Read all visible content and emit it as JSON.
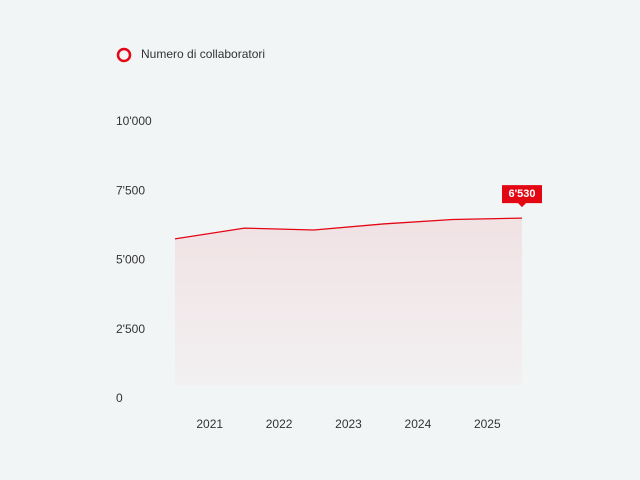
{
  "chart_data": {
    "type": "line",
    "x": [
      2020.5,
      2021.5,
      2022.5,
      2023.5,
      2024.5,
      2025.5
    ],
    "xlim": [
      2020.5,
      2025.5
    ],
    "xticks": [
      2021,
      2022,
      2023,
      2024,
      2025
    ],
    "series": [
      {
        "name": "Numero di collaboratori",
        "color": "#e30613",
        "values": [
          5780,
          6170,
          6100,
          6320,
          6480,
          6530
        ],
        "value_labels": [
          null,
          null,
          null,
          null,
          null,
          "6'530"
        ]
      }
    ],
    "ylim": [
      0,
      10000
    ],
    "yticks": [
      {
        "value": 0,
        "label": "0"
      },
      {
        "value": 2500,
        "label": "2'500"
      },
      {
        "value": 5000,
        "label": "5'000"
      },
      {
        "value": 7500,
        "label": "7'500"
      },
      {
        "value": 10000,
        "label": "10'000"
      }
    ],
    "grid": false,
    "legend": "top-left"
  }
}
